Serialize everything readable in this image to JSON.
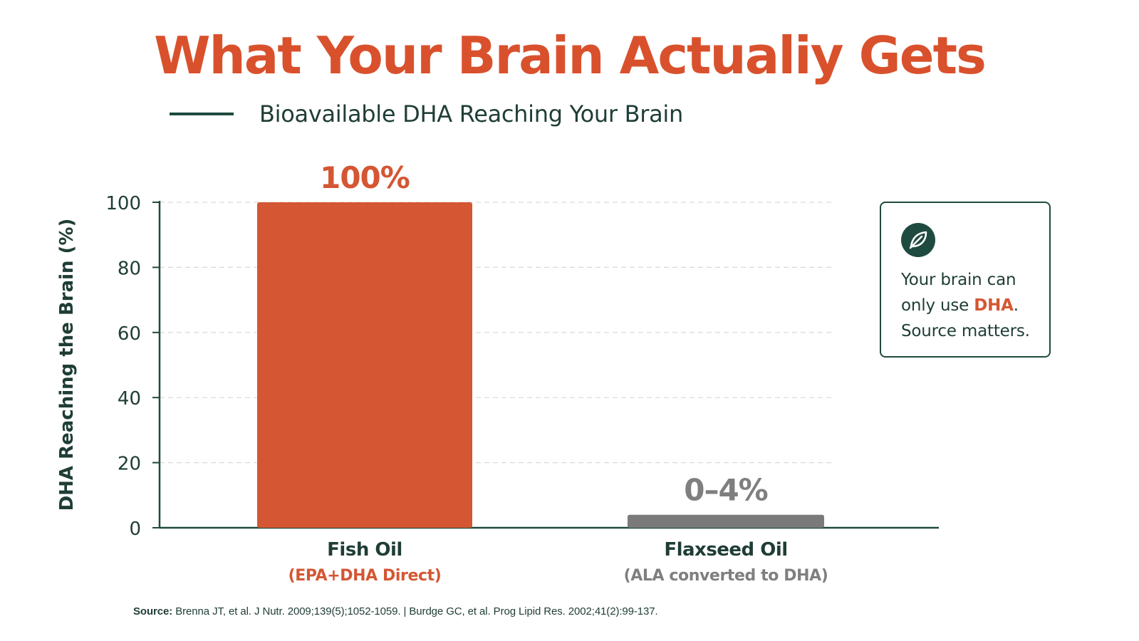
{
  "colors": {
    "title": "#d9512c",
    "accent": "#d45633",
    "dark_green": "#1f4a3f",
    "gray_bar": "#7a7a7a",
    "gray_text": "#7f7f7f",
    "grid": "#d9d9d9",
    "axis": "#1f4a3f",
    "text_dark": "#1f3d36"
  },
  "title": "What Your Brain Actualiy Gets",
  "legend": {
    "label": "Bioavailable DHA Reaching Your Brain"
  },
  "callout": {
    "icon": "leaf-icon",
    "line1": "Your brain can",
    "line2_prefix": "only use ",
    "line2_highlight": "DHA",
    "line2_suffix": ".",
    "line3": "Source matters."
  },
  "source": {
    "label": "Source:",
    "text": "Brenna JT, et al. J Nutr. 2009;139(5);1052-1059. | Burdge GC, et al. Prog Lipid Res. 2002;41(2):99-137."
  },
  "chart_data": {
    "type": "bar",
    "title": "What Your Brain Actualiy Gets",
    "ylabel": "DHA Reaching the Brain (%)",
    "ylim": [
      0,
      100
    ],
    "yticks": [
      0,
      20,
      40,
      60,
      80,
      100
    ],
    "grid": true,
    "categories": [
      "Fish Oil",
      "Flaxseed Oil"
    ],
    "category_sublabels": [
      "(EPA+DHA Direct)",
      "(ALA converted to DHA)"
    ],
    "series": [
      {
        "name": "Bioavailable DHA Reaching Your Brain",
        "values": [
          100,
          4
        ],
        "data_labels": [
          "100%",
          "0–4%"
        ]
      }
    ],
    "legend_position": "top-left"
  }
}
